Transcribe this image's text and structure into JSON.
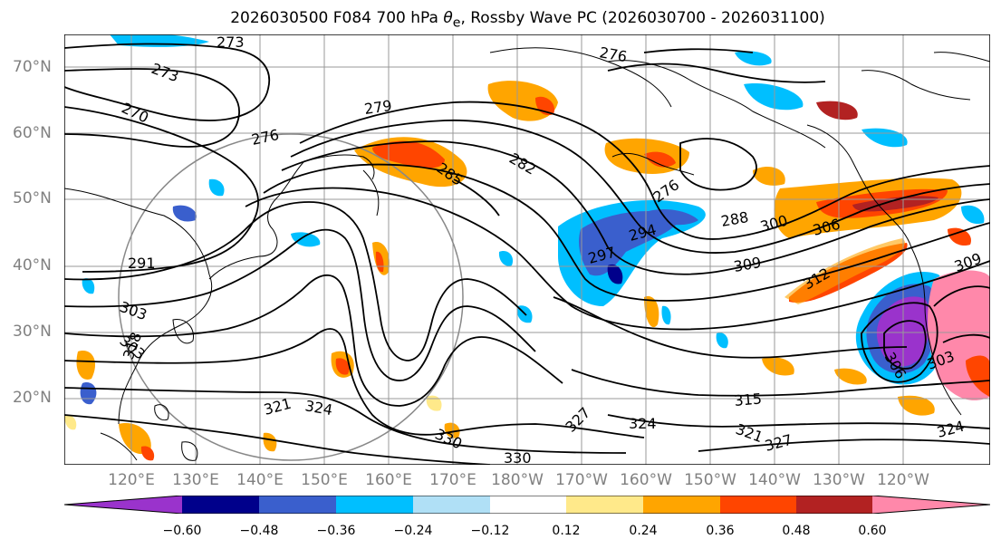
{
  "title": {
    "prefix": "2026030500 F084 700 hPa ",
    "symbol": "θ",
    "subscript": "e",
    "suffix": ", Rossby Wave PC (2026030700 - 2026031100)"
  },
  "map": {
    "lat_labels": [
      {
        "text": "70°N"
      },
      {
        "text": "60°N"
      },
      {
        "text": "50°N"
      },
      {
        "text": "40°N"
      },
      {
        "text": "30°N"
      },
      {
        "text": "20°N"
      }
    ],
    "lon_labels": [
      {
        "text": "120°E"
      },
      {
        "text": "130°E"
      },
      {
        "text": "140°E"
      },
      {
        "text": "150°E"
      },
      {
        "text": "160°E"
      },
      {
        "text": "170°E"
      },
      {
        "text": "180°W"
      },
      {
        "text": "170°W"
      },
      {
        "text": "160°W"
      },
      {
        "text": "150°W"
      },
      {
        "text": "140°W"
      },
      {
        "text": "130°W"
      },
      {
        "text": "120°W"
      }
    ],
    "contour_labels": [
      "273",
      "273",
      "270",
      "276",
      "279",
      "282",
      "285",
      "276",
      "288",
      "294",
      "297",
      "300",
      "306",
      "309",
      "303",
      "291",
      "312",
      "309",
      "303",
      "318",
      "321",
      "324",
      "330",
      "327",
      "324",
      "327",
      "330",
      "321",
      "315",
      "306",
      "303",
      "324",
      "276"
    ]
  },
  "colorbar": {
    "colors": [
      "#9a33cc",
      "#00008b",
      "#3a5fcd",
      "#00bfff",
      "#b0e0f6",
      "#ffffff",
      "#ffe98a",
      "#ffa500",
      "#ff4500",
      "#b22222",
      "#ff88aa"
    ],
    "tick_labels": [
      "−0.60",
      "−0.48",
      "−0.36",
      "−0.24",
      "−0.12",
      "0.12",
      "0.24",
      "0.36",
      "0.48",
      "0.60"
    ]
  }
}
